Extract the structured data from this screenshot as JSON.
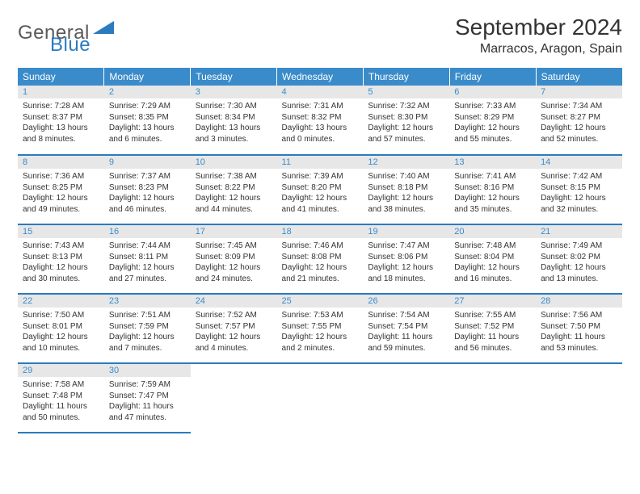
{
  "logo": {
    "general": "General",
    "blue": "Blue"
  },
  "title": "September 2024",
  "location": "Marracos, Aragon, Spain",
  "colors": {
    "header_bg": "#3a8bca",
    "header_text": "#ffffff",
    "daynum_bg": "#e7e7e7",
    "daynum_text": "#3a8bca",
    "row_divider": "#2b7bbf",
    "logo_blue": "#2b7bbf",
    "logo_gray": "#5a5a5a",
    "body_text": "#333333"
  },
  "weekdays": [
    "Sunday",
    "Monday",
    "Tuesday",
    "Wednesday",
    "Thursday",
    "Friday",
    "Saturday"
  ],
  "weeks": [
    [
      {
        "n": "1",
        "sr": "7:28 AM",
        "ss": "8:37 PM",
        "dl": "13 hours and 8 minutes."
      },
      {
        "n": "2",
        "sr": "7:29 AM",
        "ss": "8:35 PM",
        "dl": "13 hours and 6 minutes."
      },
      {
        "n": "3",
        "sr": "7:30 AM",
        "ss": "8:34 PM",
        "dl": "13 hours and 3 minutes."
      },
      {
        "n": "4",
        "sr": "7:31 AM",
        "ss": "8:32 PM",
        "dl": "13 hours and 0 minutes."
      },
      {
        "n": "5",
        "sr": "7:32 AM",
        "ss": "8:30 PM",
        "dl": "12 hours and 57 minutes."
      },
      {
        "n": "6",
        "sr": "7:33 AM",
        "ss": "8:29 PM",
        "dl": "12 hours and 55 minutes."
      },
      {
        "n": "7",
        "sr": "7:34 AM",
        "ss": "8:27 PM",
        "dl": "12 hours and 52 minutes."
      }
    ],
    [
      {
        "n": "8",
        "sr": "7:36 AM",
        "ss": "8:25 PM",
        "dl": "12 hours and 49 minutes."
      },
      {
        "n": "9",
        "sr": "7:37 AM",
        "ss": "8:23 PM",
        "dl": "12 hours and 46 minutes."
      },
      {
        "n": "10",
        "sr": "7:38 AM",
        "ss": "8:22 PM",
        "dl": "12 hours and 44 minutes."
      },
      {
        "n": "11",
        "sr": "7:39 AM",
        "ss": "8:20 PM",
        "dl": "12 hours and 41 minutes."
      },
      {
        "n": "12",
        "sr": "7:40 AM",
        "ss": "8:18 PM",
        "dl": "12 hours and 38 minutes."
      },
      {
        "n": "13",
        "sr": "7:41 AM",
        "ss": "8:16 PM",
        "dl": "12 hours and 35 minutes."
      },
      {
        "n": "14",
        "sr": "7:42 AM",
        "ss": "8:15 PM",
        "dl": "12 hours and 32 minutes."
      }
    ],
    [
      {
        "n": "15",
        "sr": "7:43 AM",
        "ss": "8:13 PM",
        "dl": "12 hours and 30 minutes."
      },
      {
        "n": "16",
        "sr": "7:44 AM",
        "ss": "8:11 PM",
        "dl": "12 hours and 27 minutes."
      },
      {
        "n": "17",
        "sr": "7:45 AM",
        "ss": "8:09 PM",
        "dl": "12 hours and 24 minutes."
      },
      {
        "n": "18",
        "sr": "7:46 AM",
        "ss": "8:08 PM",
        "dl": "12 hours and 21 minutes."
      },
      {
        "n": "19",
        "sr": "7:47 AM",
        "ss": "8:06 PM",
        "dl": "12 hours and 18 minutes."
      },
      {
        "n": "20",
        "sr": "7:48 AM",
        "ss": "8:04 PM",
        "dl": "12 hours and 16 minutes."
      },
      {
        "n": "21",
        "sr": "7:49 AM",
        "ss": "8:02 PM",
        "dl": "12 hours and 13 minutes."
      }
    ],
    [
      {
        "n": "22",
        "sr": "7:50 AM",
        "ss": "8:01 PM",
        "dl": "12 hours and 10 minutes."
      },
      {
        "n": "23",
        "sr": "7:51 AM",
        "ss": "7:59 PM",
        "dl": "12 hours and 7 minutes."
      },
      {
        "n": "24",
        "sr": "7:52 AM",
        "ss": "7:57 PM",
        "dl": "12 hours and 4 minutes."
      },
      {
        "n": "25",
        "sr": "7:53 AM",
        "ss": "7:55 PM",
        "dl": "12 hours and 2 minutes."
      },
      {
        "n": "26",
        "sr": "7:54 AM",
        "ss": "7:54 PM",
        "dl": "11 hours and 59 minutes."
      },
      {
        "n": "27",
        "sr": "7:55 AM",
        "ss": "7:52 PM",
        "dl": "11 hours and 56 minutes."
      },
      {
        "n": "28",
        "sr": "7:56 AM",
        "ss": "7:50 PM",
        "dl": "11 hours and 53 minutes."
      }
    ],
    [
      {
        "n": "29",
        "sr": "7:58 AM",
        "ss": "7:48 PM",
        "dl": "11 hours and 50 minutes."
      },
      {
        "n": "30",
        "sr": "7:59 AM",
        "ss": "7:47 PM",
        "dl": "11 hours and 47 minutes."
      },
      null,
      null,
      null,
      null,
      null
    ]
  ],
  "labels": {
    "sunrise": "Sunrise:",
    "sunset": "Sunset:",
    "daylight": "Daylight:"
  }
}
